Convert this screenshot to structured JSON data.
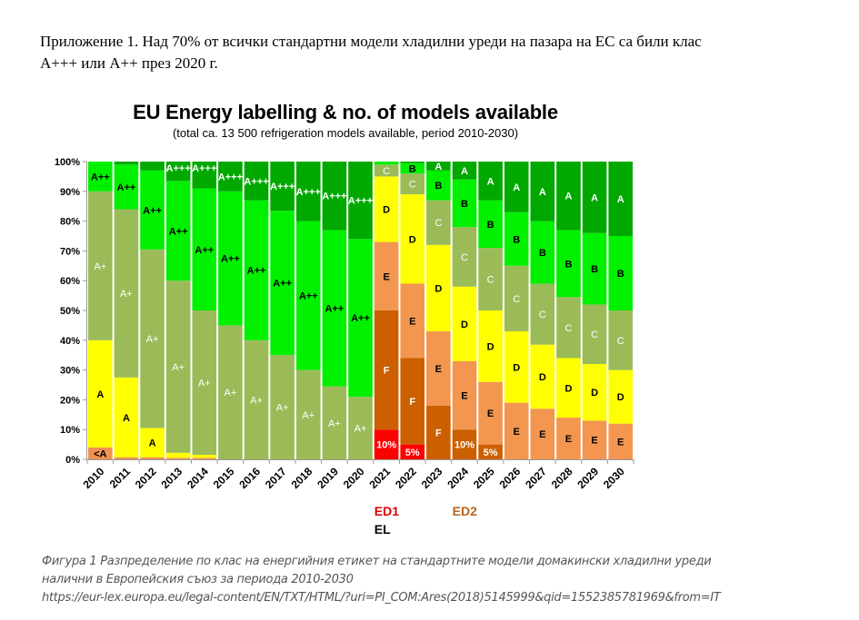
{
  "document": {
    "heading_line1": "Приложение  1. Над 70% от всички стандартни модели хладилни уреди на пазара на ЕС са били клас",
    "heading_line2": "А+++ или А++ през 2020 г.",
    "caption_line1": "Фигура 1 Разпределение по клас на енергийния етикет на стандартните модели домакински хладилни уреди",
    "caption_line2": "налични в Европейския съюз за периода 2010-2030",
    "caption_line3": "https://eur-lex.europa.eu/legal-content/EN/TXT/HTML/?uri=PI_COM:Ares(2018)5145999&qid=1552385781969&from=IT"
  },
  "chart_data": {
    "type": "bar",
    "stacked": true,
    "normalized_percent": true,
    "title": "EU Energy labelling & no. of models available",
    "subtitle": "(total ca. 13 500 refrigeration models available, period 2010-2030)",
    "xlabel": "",
    "ylabel": "",
    "ylim": [
      0,
      100
    ],
    "yticks": [
      "0%",
      "10%",
      "20%",
      "30%",
      "40%",
      "50%",
      "60%",
      "70%",
      "80%",
      "90%",
      "100%"
    ],
    "grid": false,
    "categories": [
      "2010",
      "2011",
      "2012",
      "2013",
      "2014",
      "2015",
      "2016",
      "2017",
      "2018",
      "2019",
      "2020",
      "2021",
      "2022",
      "2023",
      "2024",
      "2025",
      "2026",
      "2027",
      "2028",
      "2029",
      "2030"
    ],
    "class_colors": {
      "<A": "#f0924f",
      "A_old": "#ffff00",
      "A+": "#9bbb59",
      "A++": "#00f000",
      "A+++": "#00a800",
      "G": "#ff0000",
      "F": "#cc6000",
      "E": "#f39650",
      "D": "#ffff00",
      "C": "#9bbb59",
      "B": "#00f000",
      "A": "#00a800"
    },
    "bars": [
      {
        "year": "2010",
        "segments": [
          {
            "cls": "<A",
            "color": "<A",
            "v": 4,
            "label": "<A"
          },
          {
            "cls": "A",
            "color": "A_old",
            "v": 36,
            "label": "A"
          },
          {
            "cls": "A+",
            "color": "A+",
            "v": 50,
            "label": "A+"
          },
          {
            "cls": "A++",
            "color": "A++",
            "v": 10,
            "label": "A++"
          }
        ]
      },
      {
        "year": "2011",
        "segments": [
          {
            "cls": "<A",
            "color": "<A",
            "v": 0.7,
            "label": ""
          },
          {
            "cls": "A",
            "color": "A_old",
            "v": 26.8,
            "label": "A"
          },
          {
            "cls": "A+",
            "color": "A+",
            "v": 56.5,
            "label": "A+"
          },
          {
            "cls": "A++",
            "color": "A++",
            "v": 15,
            "label": "A++"
          },
          {
            "cls": "A+++",
            "color": "A+++",
            "v": 1,
            "label": ""
          }
        ]
      },
      {
        "year": "2012",
        "segments": [
          {
            "cls": "<A",
            "color": "<A",
            "v": 0.7,
            "label": ""
          },
          {
            "cls": "A",
            "color": "A_old",
            "v": 9.8,
            "label": "A"
          },
          {
            "cls": "A+",
            "color": "A+",
            "v": 60,
            "label": "A+"
          },
          {
            "cls": "A++",
            "color": "A++",
            "v": 26.5,
            "label": "A++"
          },
          {
            "cls": "A+++",
            "color": "A+++",
            "v": 3,
            "label": ""
          }
        ]
      },
      {
        "year": "2013",
        "segments": [
          {
            "cls": "<A",
            "color": "<A",
            "v": 0.5,
            "label": ""
          },
          {
            "cls": "A",
            "color": "A_old",
            "v": 1.7,
            "label": ""
          },
          {
            "cls": "A+",
            "color": "A+",
            "v": 57.8,
            "label": "A+"
          },
          {
            "cls": "A++",
            "color": "A++",
            "v": 33.5,
            "label": "A++"
          },
          {
            "cls": "A+++",
            "color": "A+++",
            "v": 6.5,
            "label": "A+++"
          }
        ]
      },
      {
        "year": "2014",
        "segments": [
          {
            "cls": "<A",
            "color": "<A",
            "v": 0.5,
            "label": ""
          },
          {
            "cls": "A",
            "color": "A_old",
            "v": 1,
            "label": ""
          },
          {
            "cls": "A+",
            "color": "A+",
            "v": 48.5,
            "label": "A+"
          },
          {
            "cls": "A++",
            "color": "A++",
            "v": 41,
            "label": "A++"
          },
          {
            "cls": "A+++",
            "color": "A+++",
            "v": 9,
            "label": "A+++"
          }
        ]
      },
      {
        "year": "2015",
        "segments": [
          {
            "cls": "A+",
            "color": "A+",
            "v": 45,
            "label": "A+"
          },
          {
            "cls": "A++",
            "color": "A++",
            "v": 45,
            "label": "A++"
          },
          {
            "cls": "A+++",
            "color": "A+++",
            "v": 10,
            "label": "A+++"
          }
        ]
      },
      {
        "year": "2016",
        "segments": [
          {
            "cls": "A+",
            "color": "A+",
            "v": 40,
            "label": "A+"
          },
          {
            "cls": "A++",
            "color": "A++",
            "v": 47,
            "label": "A++"
          },
          {
            "cls": "A+++",
            "color": "A+++",
            "v": 13,
            "label": "A+++"
          }
        ]
      },
      {
        "year": "2017",
        "segments": [
          {
            "cls": "A+",
            "color": "A+",
            "v": 35,
            "label": "A+"
          },
          {
            "cls": "A++",
            "color": "A++",
            "v": 48.5,
            "label": "A++"
          },
          {
            "cls": "A+++",
            "color": "A+++",
            "v": 16.5,
            "label": "A+++"
          }
        ]
      },
      {
        "year": "2018",
        "segments": [
          {
            "cls": "A+",
            "color": "A+",
            "v": 30,
            "label": "A+"
          },
          {
            "cls": "A++",
            "color": "A++",
            "v": 50,
            "label": "A++"
          },
          {
            "cls": "A+++",
            "color": "A+++",
            "v": 20,
            "label": "A+++"
          }
        ]
      },
      {
        "year": "2019",
        "segments": [
          {
            "cls": "A+",
            "color": "A+",
            "v": 24.5,
            "label": "A+"
          },
          {
            "cls": "A++",
            "color": "A++",
            "v": 52.5,
            "label": "A++"
          },
          {
            "cls": "A+++",
            "color": "A+++",
            "v": 23,
            "label": "A+++"
          }
        ]
      },
      {
        "year": "2020",
        "segments": [
          {
            "cls": "A+",
            "color": "A+",
            "v": 21,
            "label": "A+"
          },
          {
            "cls": "A++",
            "color": "A++",
            "v": 53,
            "label": "A++"
          },
          {
            "cls": "A+++",
            "color": "A+++",
            "v": 26,
            "label": "A+++"
          }
        ]
      },
      {
        "year": "2021",
        "segments": [
          {
            "cls": "G",
            "color": "G",
            "v": 10,
            "label": "10%"
          },
          {
            "cls": "F",
            "color": "F",
            "v": 40,
            "label": "F"
          },
          {
            "cls": "E",
            "color": "E",
            "v": 23,
            "label": "E"
          },
          {
            "cls": "D",
            "color": "D",
            "v": 22,
            "label": "D"
          },
          {
            "cls": "C",
            "color": "C",
            "v": 4,
            "label": "C"
          },
          {
            "cls": "B",
            "color": "B",
            "v": 1,
            "label": ""
          }
        ]
      },
      {
        "year": "2022",
        "segments": [
          {
            "cls": "G",
            "color": "G",
            "v": 5,
            "label": "5%"
          },
          {
            "cls": "F",
            "color": "F",
            "v": 29,
            "label": "F"
          },
          {
            "cls": "E",
            "color": "E",
            "v": 25,
            "label": "E"
          },
          {
            "cls": "D",
            "color": "D",
            "v": 30,
            "label": "D"
          },
          {
            "cls": "C",
            "color": "C",
            "v": 7,
            "label": "C"
          },
          {
            "cls": "B",
            "color": "B",
            "v": 3.5,
            "label": "B"
          },
          {
            "cls": "A",
            "color": "A",
            "v": 0.5,
            "label": ""
          }
        ]
      },
      {
        "year": "2023",
        "segments": [
          {
            "cls": "F",
            "color": "F",
            "v": 18,
            "label": "F"
          },
          {
            "cls": "E",
            "color": "E",
            "v": 25,
            "label": "E"
          },
          {
            "cls": "D",
            "color": "D",
            "v": 29,
            "label": "D"
          },
          {
            "cls": "C",
            "color": "C",
            "v": 15,
            "label": "C"
          },
          {
            "cls": "B",
            "color": "B",
            "v": 10,
            "label": "B"
          },
          {
            "cls": "A",
            "color": "A",
            "v": 3,
            "label": "A"
          }
        ]
      },
      {
        "year": "2024",
        "segments": [
          {
            "cls": "F",
            "color": "F",
            "v": 10,
            "label": "10%"
          },
          {
            "cls": "E",
            "color": "E",
            "v": 23,
            "label": "E"
          },
          {
            "cls": "D",
            "color": "D",
            "v": 25,
            "label": "D"
          },
          {
            "cls": "C",
            "color": "C",
            "v": 20,
            "label": "C"
          },
          {
            "cls": "B",
            "color": "B",
            "v": 16,
            "label": "B"
          },
          {
            "cls": "A",
            "color": "A",
            "v": 6,
            "label": "A"
          }
        ]
      },
      {
        "year": "2025",
        "segments": [
          {
            "cls": "F",
            "color": "F",
            "v": 5,
            "label": "5%"
          },
          {
            "cls": "E",
            "color": "E",
            "v": 21,
            "label": "E"
          },
          {
            "cls": "D",
            "color": "D",
            "v": 24,
            "label": "D"
          },
          {
            "cls": "C",
            "color": "C",
            "v": 21,
            "label": "C"
          },
          {
            "cls": "B",
            "color": "B",
            "v": 16,
            "label": "B"
          },
          {
            "cls": "A",
            "color": "A",
            "v": 13,
            "label": "A"
          }
        ]
      },
      {
        "year": "2026",
        "segments": [
          {
            "cls": "E",
            "color": "E",
            "v": 19,
            "label": "E"
          },
          {
            "cls": "D",
            "color": "D",
            "v": 24,
            "label": "D"
          },
          {
            "cls": "C",
            "color": "C",
            "v": 22,
            "label": "C"
          },
          {
            "cls": "B",
            "color": "B",
            "v": 18,
            "label": "B"
          },
          {
            "cls": "A",
            "color": "A",
            "v": 17,
            "label": "A"
          }
        ]
      },
      {
        "year": "2027",
        "segments": [
          {
            "cls": "E",
            "color": "E",
            "v": 17,
            "label": "E"
          },
          {
            "cls": "D",
            "color": "D",
            "v": 21.5,
            "label": "D"
          },
          {
            "cls": "C",
            "color": "C",
            "v": 20.5,
            "label": "C"
          },
          {
            "cls": "B",
            "color": "B",
            "v": 21,
            "label": "B"
          },
          {
            "cls": "A",
            "color": "A",
            "v": 20,
            "label": "A"
          }
        ]
      },
      {
        "year": "2028",
        "segments": [
          {
            "cls": "E",
            "color": "E",
            "v": 14,
            "label": "E"
          },
          {
            "cls": "D",
            "color": "D",
            "v": 20,
            "label": "D"
          },
          {
            "cls": "C",
            "color": "C",
            "v": 20.5,
            "label": "C"
          },
          {
            "cls": "B",
            "color": "B",
            "v": 22.5,
            "label": "B"
          },
          {
            "cls": "A",
            "color": "A",
            "v": 23,
            "label": "A"
          }
        ]
      },
      {
        "year": "2029",
        "segments": [
          {
            "cls": "E",
            "color": "E",
            "v": 13,
            "label": "E"
          },
          {
            "cls": "D",
            "color": "D",
            "v": 19,
            "label": "D"
          },
          {
            "cls": "C",
            "color": "C",
            "v": 20,
            "label": "C"
          },
          {
            "cls": "B",
            "color": "B",
            "v": 24,
            "label": "B"
          },
          {
            "cls": "A",
            "color": "A",
            "v": 24,
            "label": "A"
          }
        ]
      },
      {
        "year": "2030",
        "segments": [
          {
            "cls": "E",
            "color": "E",
            "v": 12,
            "label": "E"
          },
          {
            "cls": "D",
            "color": "D",
            "v": 18,
            "label": "D"
          },
          {
            "cls": "C",
            "color": "C",
            "v": 20,
            "label": "C"
          },
          {
            "cls": "B",
            "color": "B",
            "v": 25,
            "label": "B"
          },
          {
            "cls": "A",
            "color": "A",
            "v": 25,
            "label": "A"
          }
        ]
      }
    ],
    "label_text_colors": {
      "<A": "#000000",
      "A_old": "#000000",
      "A+": "#ffffff",
      "A++": "#000000",
      "A+++": "#ffffff",
      "G": "#ffffff",
      "F": "#ffffff",
      "E": "#000000",
      "D": "#000000",
      "C": "#ffffff",
      "B": "#000000",
      "A": "#ffffff"
    },
    "annotations": [
      {
        "text": "ED1",
        "category": "2021",
        "color": "#e00000"
      },
      {
        "text": "EL",
        "category": "2021",
        "color": "#000000"
      },
      {
        "text": "ED2",
        "category": "2024",
        "color": "#b8651e"
      }
    ]
  }
}
